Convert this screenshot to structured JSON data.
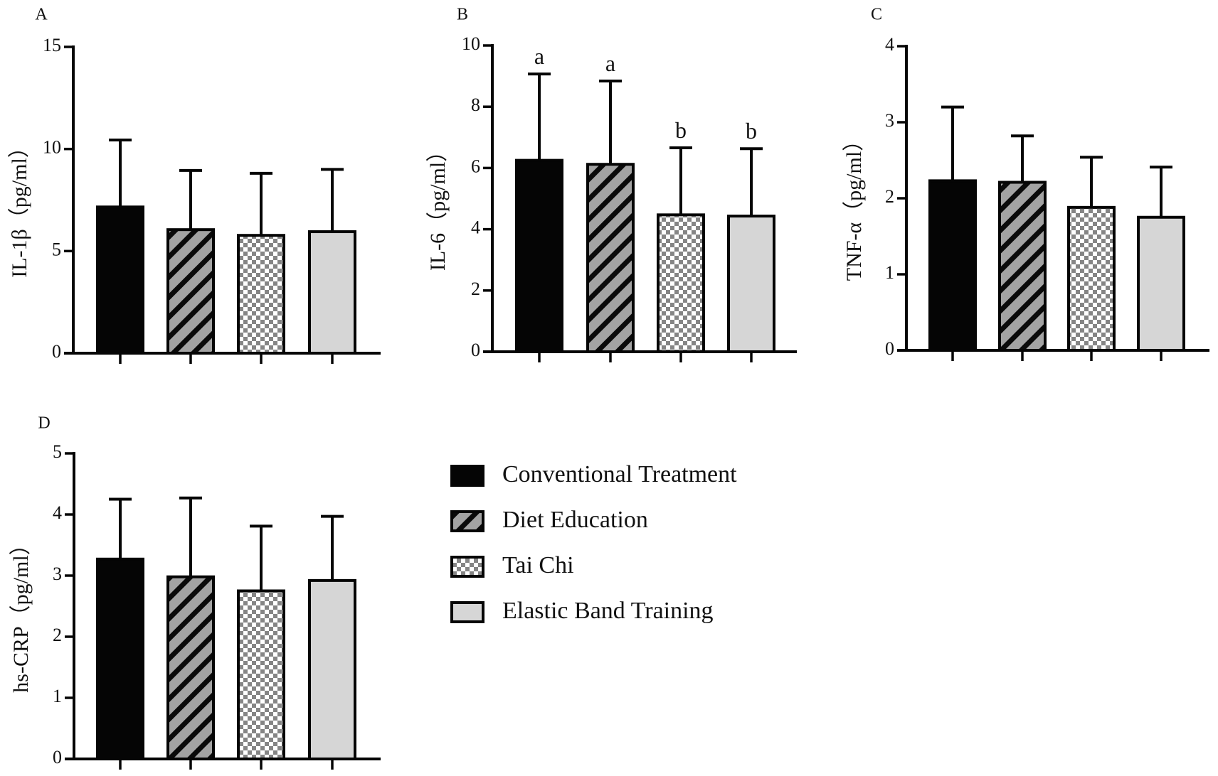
{
  "chart_data": [
    {
      "type": "bar",
      "panel": "A",
      "ylabel": "IL-1β（pg/ml）",
      "ylim": [
        0,
        15
      ],
      "yticks": [
        0,
        5,
        10,
        15
      ],
      "categories": [
        "Conventional Treatment",
        "Diet Education",
        "Tai Chi",
        "Elastic Band Training"
      ],
      "values": [
        7.16,
        6.05,
        5.77,
        5.95
      ],
      "error_upper": [
        10.44,
        8.95,
        8.81,
        9.0
      ],
      "annotations": [
        "",
        "",
        "",
        ""
      ],
      "xlabel": "",
      "grid": false
    },
    {
      "type": "bar",
      "panel": "B",
      "ylabel": "IL-6（pg/ml）",
      "ylim": [
        0,
        10
      ],
      "yticks": [
        0,
        2,
        4,
        6,
        8,
        10
      ],
      "categories": [
        "Conventional Treatment",
        "Diet Education",
        "Tai Chi",
        "Elastic Band Training"
      ],
      "values": [
        6.25,
        6.12,
        4.47,
        4.43
      ],
      "error_upper": [
        9.07,
        8.84,
        6.66,
        6.63
      ],
      "annotations": [
        "a",
        "a",
        "b",
        "b"
      ],
      "xlabel": "",
      "grid": false
    },
    {
      "type": "bar",
      "panel": "C",
      "ylabel": "TNF-α（pg/ml）",
      "ylim": [
        0,
        4
      ],
      "yticks": [
        0,
        1,
        2,
        3,
        4
      ],
      "categories": [
        "Conventional Treatment",
        "Diet Education",
        "Tai Chi",
        "Elastic Band Training"
      ],
      "values": [
        2.23,
        2.21,
        1.88,
        1.75
      ],
      "error_upper": [
        3.2,
        2.82,
        2.54,
        2.41
      ],
      "annotations": [
        "",
        "",
        "",
        ""
      ],
      "xlabel": "",
      "grid": false
    },
    {
      "type": "bar",
      "panel": "D",
      "ylabel": "hs-CRP（pg/ml）",
      "ylim": [
        0,
        5
      ],
      "yticks": [
        0,
        1,
        2,
        3,
        4,
        5
      ],
      "categories": [
        "Conventional Treatment",
        "Diet Education",
        "Tai Chi",
        "Elastic Band Training"
      ],
      "values": [
        3.27,
        2.98,
        2.75,
        2.92
      ],
      "error_upper": [
        4.25,
        4.27,
        3.81,
        3.97
      ],
      "annotations": [
        "",
        "",
        "",
        ""
      ],
      "xlabel": "",
      "grid": false
    }
  ],
  "legend": {
    "placement": "bottom-center",
    "items": [
      {
        "label": "Conventional Treatment",
        "fill": "solid-black"
      },
      {
        "label": "Diet Education",
        "fill": "diagonal-hatch"
      },
      {
        "label": "Tai Chi",
        "fill": "checker"
      },
      {
        "label": "Elastic Band Training",
        "fill": "light-gray"
      }
    ]
  },
  "colors": {
    "conventional": "#050505",
    "hatch_bg": "#a3a3a3",
    "hatch_stripe": "#0a0a0a",
    "checker_bg": "#ffffff",
    "checker_sq": "#858585",
    "elastic": "#d6d6d6",
    "axis": "#050505"
  }
}
